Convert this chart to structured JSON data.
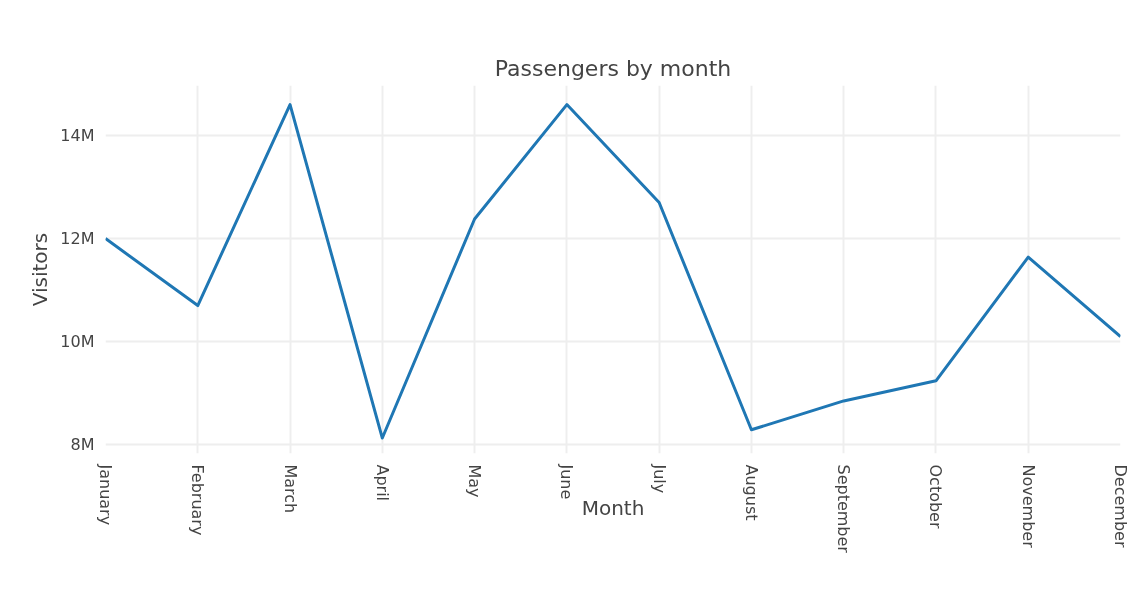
{
  "chart_data": {
    "type": "line",
    "title": "Passengers by month",
    "xlabel": "Month",
    "ylabel": "Visitors",
    "categories": [
      "January",
      "February",
      "March",
      "April",
      "May",
      "June",
      "July",
      "August",
      "September",
      "October",
      "November",
      "December"
    ],
    "series": [
      {
        "color": "#1f77b4",
        "values": [
          12000000,
          10700000,
          14600000,
          8130000,
          12380000,
          14600000,
          12700000,
          8290000,
          8850000,
          9240000,
          11640000,
          10100000
        ]
      }
    ],
    "ylim": [
      7830000,
      14970000
    ],
    "yticks": [
      {
        "value": 8000000,
        "label": "8M"
      },
      {
        "value": 10000000,
        "label": "10M"
      },
      {
        "value": 12000000,
        "label": "12M"
      },
      {
        "value": 14000000,
        "label": "14M"
      }
    ],
    "grid": true,
    "marker": "none",
    "line_style": "solid"
  }
}
